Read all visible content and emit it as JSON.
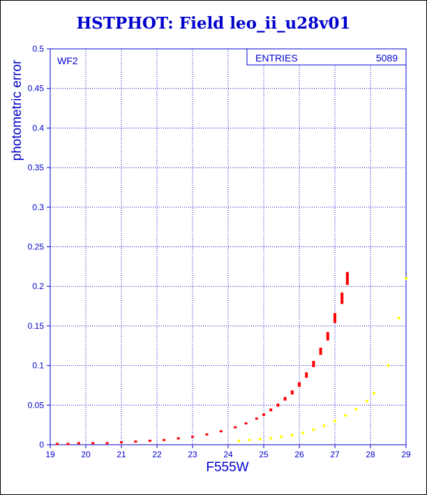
{
  "title": "HSTPHOT: Field leo_ii_u28v01",
  "colors": {
    "axis": "#0000cc",
    "grid": "#0000cc",
    "primary": "#ff0000",
    "secondary": "#ffff00"
  },
  "chart_data": {
    "type": "scatter",
    "title": "HSTPHOT: Field leo_ii_u28v01",
    "xlabel": "F555W",
    "ylabel": "photometric error",
    "xlim": [
      19,
      29
    ],
    "ylim": [
      0,
      0.5
    ],
    "xticks": [
      "19",
      "20",
      "21",
      "22",
      "23",
      "24",
      "25",
      "26",
      "27",
      "28",
      "29"
    ],
    "yticks": [
      "0",
      "0.05",
      "0.1",
      "0.15",
      "0.2",
      "0.25",
      "0.3",
      "0.35",
      "0.4",
      "0.45",
      "0.5"
    ],
    "grid": true,
    "panel_label": "WF2",
    "stats": {
      "label": "ENTRIES",
      "value": "5089"
    },
    "series": [
      {
        "color": "#ff0000",
        "x": [
          19.2,
          19.5,
          19.8,
          20.2,
          20.6,
          21.0,
          21.4,
          21.8,
          22.2,
          22.6,
          23.0,
          23.4,
          23.8,
          24.2,
          24.5,
          24.8,
          25.0,
          25.2,
          25.4,
          25.6,
          25.8,
          26.0,
          26.2,
          26.4,
          26.6,
          26.8,
          27.0,
          27.2,
          27.35
        ],
        "y": [
          0.001,
          0.001,
          0.002,
          0.002,
          0.002,
          0.003,
          0.004,
          0.005,
          0.006,
          0.008,
          0.01,
          0.013,
          0.017,
          0.022,
          0.027,
          0.033,
          0.038,
          0.044,
          0.05,
          0.058,
          0.066,
          0.076,
          0.088,
          0.102,
          0.118,
          0.137,
          0.16,
          0.185,
          0.21
        ]
      },
      {
        "color": "#ffff00",
        "x": [
          24.3,
          24.6,
          24.9,
          25.2,
          25.5,
          25.8,
          26.1,
          26.4,
          26.7,
          27.0,
          27.3,
          27.6,
          27.9,
          28.1,
          28.5,
          28.8,
          29.0
        ],
        "y": [
          0.005,
          0.006,
          0.007,
          0.008,
          0.01,
          0.012,
          0.015,
          0.019,
          0.024,
          0.03,
          0.037,
          0.045,
          0.055,
          0.065,
          0.1,
          0.16,
          0.21
        ]
      }
    ]
  }
}
